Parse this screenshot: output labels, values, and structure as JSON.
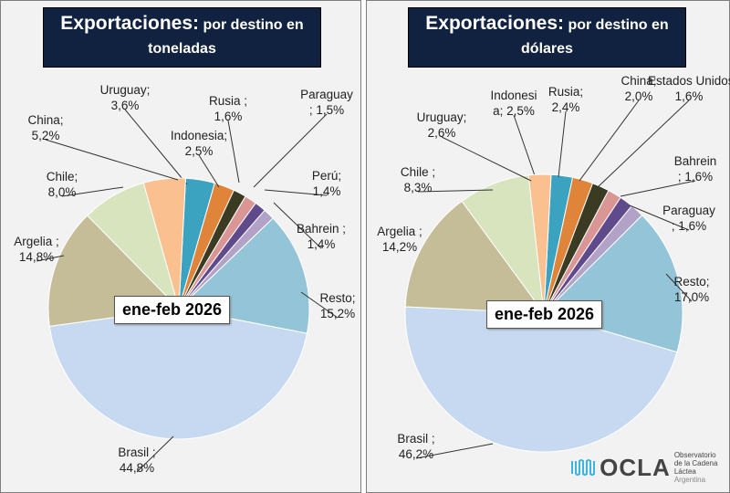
{
  "charts": [
    {
      "title_main": "Exportaciones:",
      "title_rest": " por destino en",
      "title_line2": "toneladas",
      "period": "ene-feb 2026"
    },
    {
      "title_main": "Exportaciones:",
      "title_rest": " por destino en",
      "title_line2": "dólares",
      "period": "ene-feb 2026"
    }
  ],
  "chart_data": [
    {
      "type": "pie",
      "title": "Exportaciones: por destino en toneladas",
      "unit": "%",
      "slices": [
        {
          "label": "Uruguay;",
          "value": 3.6,
          "text": "3,6%",
          "color": "#3ba3c0"
        },
        {
          "label": "Indonesia;",
          "value": 2.5,
          "text": "2,5%",
          "color": "#e0843a"
        },
        {
          "label": "Rusia ;",
          "value": 1.6,
          "text": "1,6%",
          "color": "#3b3a22"
        },
        {
          "label": "Paraguay",
          "value": 1.5,
          "text": "; 1,5%",
          "color": "#d99694"
        },
        {
          "label": "Perú;",
          "value": 1.4,
          "text": "1,4%",
          "color": "#5f4b8b"
        },
        {
          "label": "Bahrein ;",
          "value": 1.4,
          "text": "1,4%",
          "color": "#b3a2c7"
        },
        {
          "label": "Resto;",
          "value": 15.2,
          "text": "15,2%",
          "color": "#93c4d8"
        },
        {
          "label": "Brasil ;",
          "value": 44.8,
          "text": "44,8%",
          "color": "#c6d9f1"
        },
        {
          "label": "Argelia ;",
          "value": 14.8,
          "text": "14,8%",
          "color": "#c4bd97"
        },
        {
          "label": "Chile;",
          "value": 8.0,
          "text": "8,0%",
          "color": "#d7e4bd"
        },
        {
          "label": "China;",
          "value": 5.2,
          "text": "5,2%",
          "color": "#fac090"
        }
      ]
    },
    {
      "type": "pie",
      "title": "Exportaciones: por destino en dólares",
      "unit": "%",
      "slices": [
        {
          "label": "Indonesi",
          "value": 2.5,
          "text": "a; 2,5%",
          "color": "#3ba3c0"
        },
        {
          "label": "Rusia;",
          "value": 2.4,
          "text": "2,4%",
          "color": "#e0843a"
        },
        {
          "label": "China;",
          "value": 2.0,
          "text": "2,0%",
          "color": "#3b3a22"
        },
        {
          "label": "Estados Unidos ;",
          "value": 1.6,
          "text": "1,6%",
          "color": "#d99694"
        },
        {
          "label": "Bahrein",
          "value": 1.6,
          "text": "; 1,6%",
          "color": "#5f4b8b"
        },
        {
          "label": "Paraguay",
          "value": 1.6,
          "text": "; 1,6%",
          "color": "#b3a2c7"
        },
        {
          "label": "Resto;",
          "value": 17.0,
          "text": "17,0%",
          "color": "#93c4d8"
        },
        {
          "label": "Brasil ;",
          "value": 46.2,
          "text": "46,2%",
          "color": "#c6d9f1"
        },
        {
          "label": "Argelia ;",
          "value": 14.2,
          "text": "14,2%",
          "color": "#c4bd97"
        },
        {
          "label": "Chile ;",
          "value": 8.3,
          "text": "8,3%",
          "color": "#d7e4bd"
        },
        {
          "label": "Uruguay;",
          "value": 2.6,
          "text": "2,6%",
          "color": "#fac090"
        }
      ]
    }
  ],
  "logo": {
    "name": "OCLA",
    "line1": "Observatorio",
    "line2": "de la Cadena Láctea",
    "line3": "Argentina"
  }
}
